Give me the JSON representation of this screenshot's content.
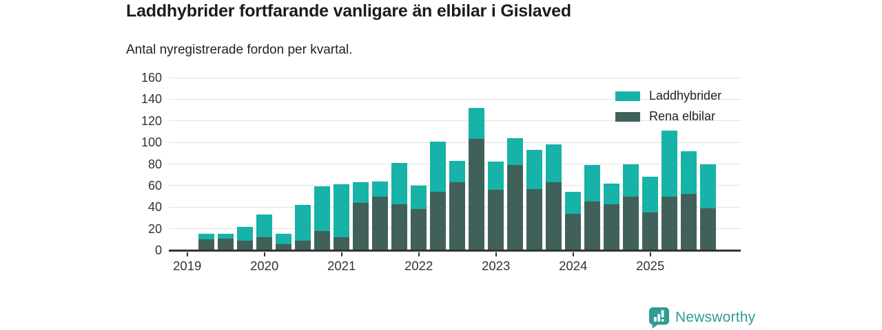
{
  "header": {
    "title": "Laddhybrider fortfarande vanligare än elbilar i Gislaved",
    "subtitle": "Antal nyregistrerade fordon per kvartal."
  },
  "chart_data": {
    "type": "bar",
    "stacked": true,
    "title": "Laddhybrider fortfarande vanligare än elbilar i Gislaved",
    "subtitle": "Antal nyregistrerade fordon per kvartal.",
    "categories": [
      "2019 Q2",
      "2019 Q3",
      "2019 Q4",
      "2020 Q1",
      "2020 Q2",
      "2020 Q3",
      "2020 Q4",
      "2021 Q1",
      "2021 Q2",
      "2021 Q3",
      "2021 Q4",
      "2022 Q1",
      "2022 Q2",
      "2022 Q3",
      "2022 Q4",
      "2023 Q1",
      "2023 Q2",
      "2023 Q3",
      "2023 Q4",
      "2024 Q1",
      "2024 Q2",
      "2024 Q3",
      "2024 Q4",
      "2025 Q1",
      "2025 Q2",
      "2025 Q3",
      "2025 Q4"
    ],
    "series": [
      {
        "name": "Laddhybrider",
        "color": "#17B2A8",
        "values": [
          5,
          4,
          13,
          21,
          9,
          33,
          41,
          49,
          19,
          14,
          38,
          22,
          47,
          20,
          29,
          26,
          25,
          36,
          35,
          20,
          34,
          19,
          30,
          33,
          61,
          40,
          41
        ]
      },
      {
        "name": "Rena elbilar",
        "color": "#40615A",
        "values": [
          10,
          11,
          9,
          12,
          6,
          9,
          18,
          12,
          44,
          50,
          43,
          38,
          54,
          63,
          103,
          56,
          79,
          57,
          63,
          34,
          45,
          43,
          50,
          35,
          50,
          52,
          39
        ]
      }
    ],
    "stack_bottom_series": "Rena elbilar",
    "x_tick_labels": [
      "2019",
      "2020",
      "2021",
      "2022",
      "2023",
      "2024",
      "2025"
    ],
    "x_tick_slots": [
      0,
      4,
      8,
      12,
      16,
      20,
      24
    ],
    "first_category_slot": 1,
    "y_ticks": [
      0,
      20,
      40,
      60,
      80,
      100,
      120,
      140,
      160
    ],
    "ylim": [
      0,
      160
    ],
    "grid": "horizontal",
    "legend_position": "top-right"
  },
  "colors": {
    "title": "#1C1C1C",
    "text": "#333333",
    "grid": "#E2E2E2",
    "axis": "#333333",
    "background": "#FFFFFF",
    "brand": "#2F9D94"
  },
  "branding": {
    "logo_text": "Newsworthy",
    "logo_icon": "newsworthy-speech-bubble-bar-chart"
  }
}
